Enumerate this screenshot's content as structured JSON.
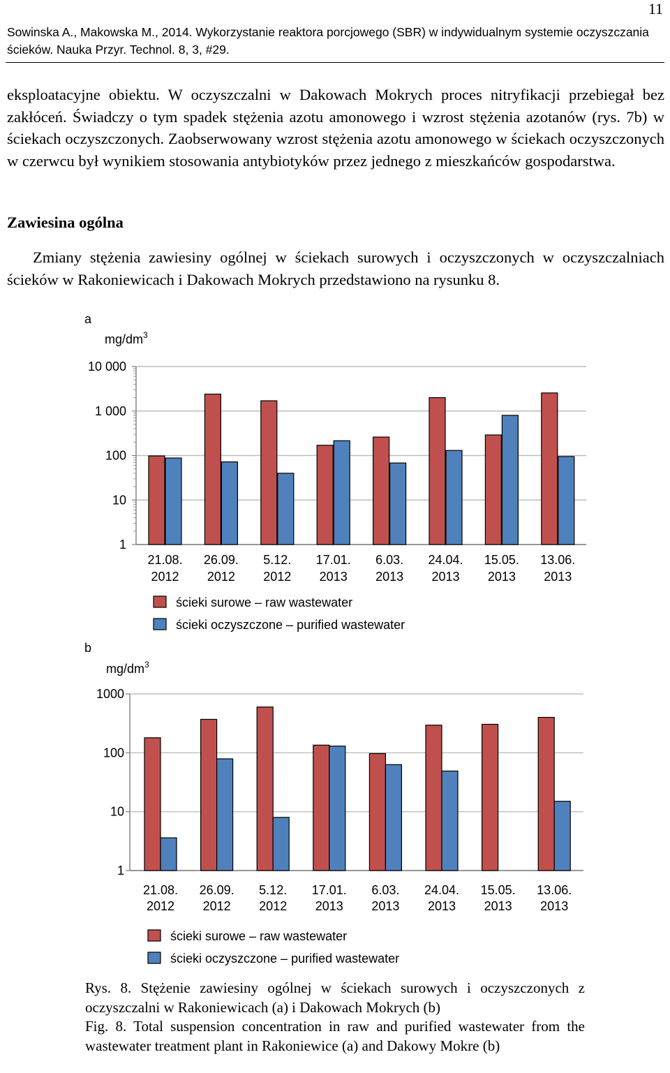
{
  "page": {
    "number": "11",
    "header": "Sowinska A., Makowska M., 2014. Wykorzystanie reaktora porcjowego (SBR) w indywidualnym systemie oczyszczania ścieków. Nauka Przyr. Technol. 8, 3, #29."
  },
  "body": {
    "paragraph1": "eksploatacyjne obiektu. W oczyszczalni w Dakowach Mokrych proces nitryfikacji przebiegał bez zakłóceń. Świadczy o tym spadek stężenia azotu amonowego i wzrost stężenia azotanów (rys. 7b) w ściekach oczyszczonych. Zaobserwowany wzrost stężenia azotu amonowego w ściekach oczyszczonych w czerwcu był wynikiem stosowania antybiotyków przez jednego z mieszkańców gospodarstwa.",
    "section_heading": "Zawiesina ogólna",
    "paragraph2": "Zmiany stężenia zawiesiny ogólnej w ściekach surowych i oczyszczonych w oczyszczalniach ścieków w Rakoniewicach i Dakowach Mokrych przedstawiono na rysunku 8."
  },
  "colors": {
    "raw": "#c0504d",
    "purified": "#4f81bd",
    "edge": "#000000"
  },
  "chart_data": [
    {
      "type": "bar",
      "panel_label": "a",
      "ylabel": "mg/dm3",
      "yscale": "log",
      "ylim": [
        1,
        10000
      ],
      "yticks": [
        {
          "value": 1,
          "label": "1"
        },
        {
          "value": 10,
          "label": "10"
        },
        {
          "value": 100,
          "label": "100"
        },
        {
          "value": 1000,
          "label": "1 000"
        },
        {
          "value": 10000,
          "label": "10 000"
        }
      ],
      "categories": [
        [
          "21.08.",
          "2012"
        ],
        [
          "26.09.",
          "2012"
        ],
        [
          "5.12.",
          "2012"
        ],
        [
          "17.01.",
          "2013"
        ],
        [
          "6.03.",
          "2013"
        ],
        [
          "24.04.",
          "2013"
        ],
        [
          "15.05.",
          "2013"
        ],
        [
          "13.06.",
          "2013"
        ]
      ],
      "series": [
        {
          "name": "ścieki surowe – raw wastewater",
          "values": [
            98,
            2400,
            1700,
            170,
            260,
            2000,
            290,
            2550
          ]
        },
        {
          "name": "ścieki oczyszczone – purified wastewater",
          "values": [
            88,
            72,
            40,
            215,
            68,
            130,
            800,
            95
          ]
        }
      ],
      "legend": "below"
    },
    {
      "type": "bar",
      "panel_label": "b",
      "ylabel": "mg/dm3",
      "yscale": "log",
      "ylim": [
        1,
        1000
      ],
      "yticks": [
        {
          "value": 1,
          "label": "1"
        },
        {
          "value": 10,
          "label": "10"
        },
        {
          "value": 100,
          "label": "100"
        },
        {
          "value": 1000,
          "label": "1000"
        }
      ],
      "categories": [
        [
          "21.08.",
          "2012"
        ],
        [
          "26.09.",
          "2012"
        ],
        [
          "5.12.",
          "2012"
        ],
        [
          "17.01.",
          "2013"
        ],
        [
          "6.03.",
          "2013"
        ],
        [
          "24.04.",
          "2013"
        ],
        [
          "15.05.",
          "2013"
        ],
        [
          "13.06.",
          "2013"
        ]
      ],
      "series": [
        {
          "name": "ścieki surowe – raw wastewater",
          "values": [
            180,
            370,
            600,
            135,
            97,
            295,
            305,
            400
          ]
        },
        {
          "name": "ścieki oczyszczone – purified wastewater",
          "values": [
            3.6,
            79,
            8,
            130,
            63,
            49,
            null,
            15
          ]
        }
      ],
      "legend": "below"
    }
  ],
  "caption": {
    "pl": "Rys. 8. Stężenie zawiesiny ogólnej w ściekach surowych i oczyszczonych z oczyszczalni w Rakoniewicach (a) i Dakowach Mokrych (b)",
    "en": "Fig. 8. Total suspension concentration in raw and purified wastewater from the wastewater treatment plant in Rakoniewice (a) and Dakowy Mokre (b)"
  }
}
